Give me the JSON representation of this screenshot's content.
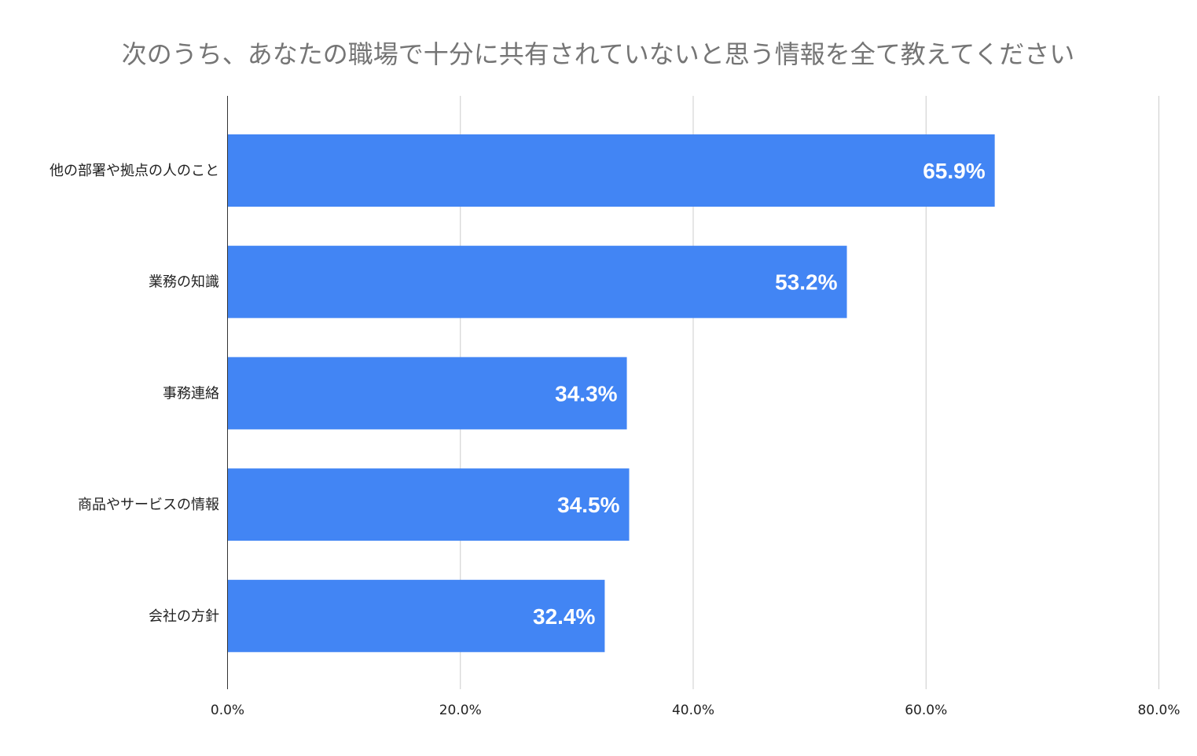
{
  "chart_data": {
    "type": "bar",
    "orientation": "horizontal",
    "title": "次のうち、あなたの職場で十分に共有されていないと思う情報を全て教えてください",
    "categories": [
      "他の部署や拠点の人のこと",
      "業務の知識",
      "事務連絡",
      "商品やサービスの情報",
      "会社の方針"
    ],
    "values": [
      65.9,
      53.2,
      34.3,
      34.5,
      32.4
    ],
    "data_labels": [
      "65.9%",
      "53.2%",
      "34.3%",
      "34.5%",
      "32.4%"
    ],
    "xlim": [
      0,
      80
    ],
    "x_ticks": [
      0,
      20,
      40,
      60,
      80
    ],
    "x_tick_labels": [
      "0.0%",
      "20.0%",
      "40.0%",
      "60.0%",
      "80.0%"
    ],
    "xlabel": "",
    "ylabel": "",
    "grid": true,
    "legend": "none",
    "colors": {
      "bar": "#4285f4",
      "grid": "#cccccc",
      "title": "#757575",
      "label": "#222222",
      "data_label": "#ffffff"
    }
  }
}
